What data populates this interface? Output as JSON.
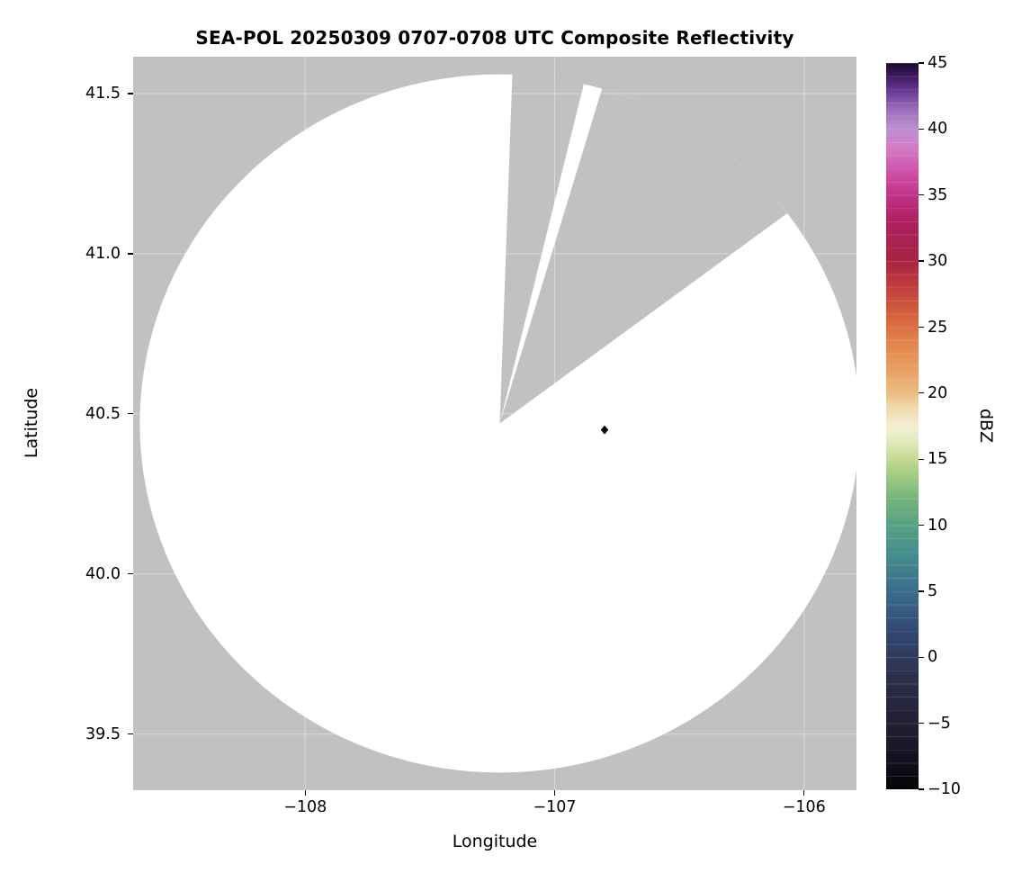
{
  "figure": {
    "title": "SEA-POL 20250309 0707-0708 UTC Composite Reflectivity"
  },
  "chart_data": {
    "type": "heatmap",
    "title": "SEA-POL 20250309 0707-0708 UTC Composite Reflectivity",
    "xlabel": "Longitude",
    "ylabel": "Latitude",
    "xlim": [
      -108.69,
      -105.79
    ],
    "ylim": [
      39.325,
      41.615
    ],
    "grid": true,
    "x_ticks": [
      {
        "v": -108,
        "label": "−108"
      },
      {
        "v": -107,
        "label": "−107"
      },
      {
        "v": -106,
        "label": "−106"
      }
    ],
    "y_ticks": [
      {
        "v": 41.5,
        "label": "41.5"
      },
      {
        "v": 41.0,
        "label": "41.0"
      },
      {
        "v": 40.5,
        "label": "40.5"
      },
      {
        "v": 40.0,
        "label": "40.0"
      },
      {
        "v": 39.5,
        "label": "39.5"
      }
    ],
    "colorbar": {
      "label": "dBZ",
      "min": -10,
      "max": 45,
      "ticks": [
        {
          "v": 45,
          "label": "45"
        },
        {
          "v": 40,
          "label": "40"
        },
        {
          "v": 35,
          "label": "35"
        },
        {
          "v": 30,
          "label": "30"
        },
        {
          "v": 25,
          "label": "25"
        },
        {
          "v": 20,
          "label": "20"
        },
        {
          "v": 15,
          "label": "15"
        },
        {
          "v": 10,
          "label": "10"
        },
        {
          "v": 5,
          "label": "5"
        },
        {
          "v": 0,
          "label": "0"
        },
        {
          "v": -5,
          "label": "−5"
        },
        {
          "v": -10,
          "label": "−10"
        }
      ],
      "stops": [
        {
          "v": -10,
          "c": "#050406"
        },
        {
          "v": -7,
          "c": "#191627"
        },
        {
          "v": -5,
          "c": "#221f33"
        },
        {
          "v": -2,
          "c": "#2b2c48"
        },
        {
          "v": 0,
          "c": "#2f3a5c"
        },
        {
          "v": 2,
          "c": "#324973"
        },
        {
          "v": 5,
          "c": "#3a6d8c"
        },
        {
          "v": 8,
          "c": "#46908c"
        },
        {
          "v": 10,
          "c": "#57a183"
        },
        {
          "v": 12,
          "c": "#76b47c"
        },
        {
          "v": 13.5,
          "c": "#9ac87f"
        },
        {
          "v": 15,
          "c": "#c3da93"
        },
        {
          "v": 16.5,
          "c": "#e7ecc2"
        },
        {
          "v": 17.5,
          "c": "#f2eed2"
        },
        {
          "v": 19,
          "c": "#f0d8a8"
        },
        {
          "v": 20,
          "c": "#edbb80"
        },
        {
          "v": 22,
          "c": "#e89d5f"
        },
        {
          "v": 24,
          "c": "#e0814a"
        },
        {
          "v": 26,
          "c": "#d4603c"
        },
        {
          "v": 28,
          "c": "#c23f3c"
        },
        {
          "v": 30,
          "c": "#a82443"
        },
        {
          "v": 33,
          "c": "#ad2060"
        },
        {
          "v": 35,
          "c": "#c13387"
        },
        {
          "v": 37,
          "c": "#cf56ae"
        },
        {
          "v": 38.5,
          "c": "#d47ac4"
        },
        {
          "v": 40,
          "c": "#bd90d4"
        },
        {
          "v": 41.5,
          "c": "#9a6cb8"
        },
        {
          "v": 43,
          "c": "#643591"
        },
        {
          "v": 44,
          "c": "#3d1a5e"
        },
        {
          "v": 45,
          "c": "#1a0930"
        }
      ]
    },
    "radar_coverage": {
      "center_lon": -107.22,
      "center_lat": 40.47,
      "radius_lon_deg": 1.443,
      "radius_lat_deg": 1.09,
      "coverage_fill": "#ffffff",
      "background_fill": "#c1c1c1",
      "blocked_sectors_az_deg": [
        [
          2,
          13.5
        ],
        [
          16.5,
          53
        ]
      ]
    },
    "markers": [
      {
        "lon": -106.8,
        "lat": 40.45,
        "shape": "diamond",
        "color": "#000000"
      }
    ]
  }
}
